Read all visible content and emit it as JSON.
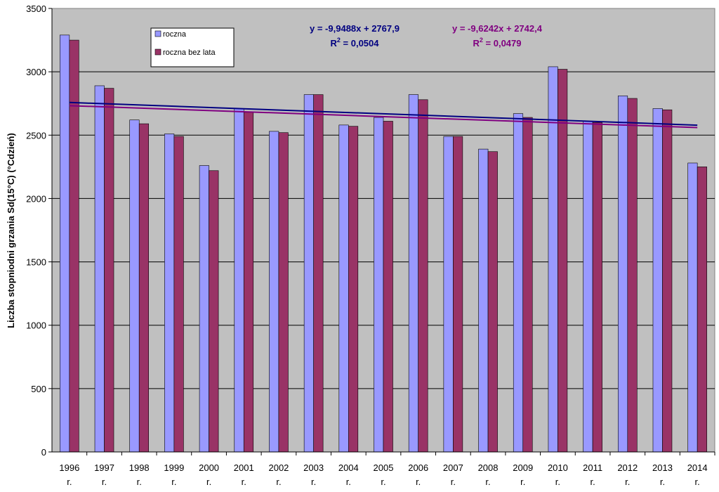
{
  "chart_data": {
    "type": "bar",
    "categories": [
      "1996",
      "1997",
      "1998",
      "1999",
      "2000",
      "2001",
      "2002",
      "2003",
      "2004",
      "2005",
      "2006",
      "2007",
      "2008",
      "2009",
      "2010",
      "2011",
      "2012",
      "2013",
      "2014"
    ],
    "category_suffix": "r.",
    "series": [
      {
        "name": "roczna",
        "color": "#9999ff",
        "values": [
          3290,
          2890,
          2620,
          2510,
          2260,
          2710,
          2530,
          2820,
          2580,
          2640,
          2820,
          2490,
          2390,
          2670,
          3040,
          2610,
          2810,
          2710,
          2280
        ]
      },
      {
        "name": "roczna bez lata",
        "color": "#993366",
        "values": [
          3250,
          2870,
          2590,
          2490,
          2220,
          2680,
          2520,
          2820,
          2570,
          2610,
          2780,
          2490,
          2370,
          2640,
          3020,
          2600,
          2790,
          2700,
          2250
        ]
      }
    ],
    "trendlines": [
      {
        "series": "roczna",
        "color": "#000080",
        "equation": "y = -9,9488x + 2767,9",
        "r2_label": "R",
        "r2_exp": "2",
        "r2_value": " = 0,0504",
        "slope": -9.9488,
        "intercept": 2767.9
      },
      {
        "series": "roczna bez lata",
        "color": "#800080",
        "equation": "y = -9,6242x + 2742,4",
        "r2_label": "R",
        "r2_exp": "2",
        "r2_value": " = 0,0479",
        "slope": -9.6242,
        "intercept": 2742.4
      }
    ],
    "ylabel": "Liczba stopniodni grzania Sd(15°C) (°Cdzień)",
    "ylim": [
      0,
      3500
    ],
    "yticks": [
      0,
      500,
      1000,
      1500,
      2000,
      2500,
      3000,
      3500
    ],
    "grid": true,
    "legend": "top-left"
  }
}
